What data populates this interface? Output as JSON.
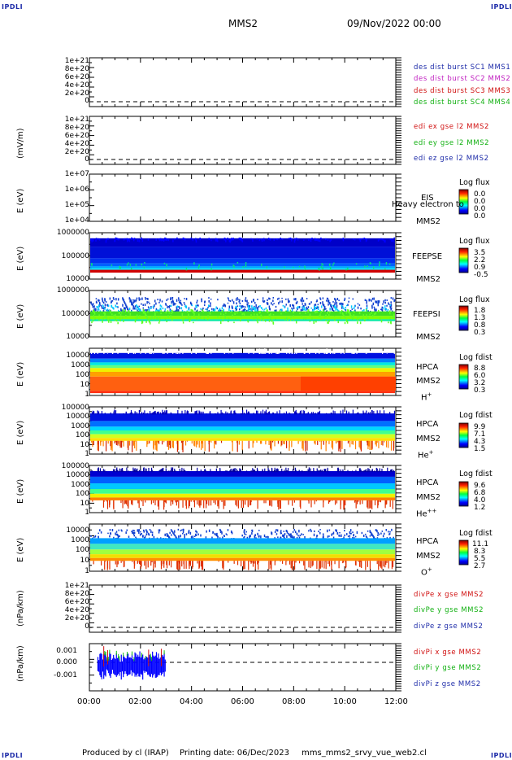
{
  "header": {
    "spacecraft": "MMS2",
    "datetime": "09/Nov/2022 00:00",
    "corner_label": "IPDLI"
  },
  "footer": {
    "produced_by": "Produced by cl (IRAP)",
    "printing_date": "Printing date: 06/Dec/2023",
    "script_name": "mms_mms2_srvy_vue_web2.cl"
  },
  "x_axis": {
    "tick_labels": [
      "00:00",
      "02:00",
      "04:00",
      "06:00",
      "08:00",
      "10:00",
      "12:00"
    ]
  },
  "panels": {
    "p1": {
      "ticks": [
        "1e+21",
        "8e+20",
        "6e+20",
        "4e+20",
        "2e+20",
        "0"
      ],
      "legend": [
        {
          "text": "des dist burst SC1 MMS1",
          "color": "#1c2aa8"
        },
        {
          "text": "des dist burst SC2 MMS2",
          "color": "#c020c0"
        },
        {
          "text": "des dist burst SC3 MMS3",
          "color": "#d01010"
        },
        {
          "text": "des dist burst SC4 MMS4",
          "color": "#10b010"
        }
      ]
    },
    "p2": {
      "ylabel": "(mV/m)",
      "ticks": [
        "1e+21",
        "8e+20",
        "6e+20",
        "4e+20",
        "2e+20",
        "0"
      ],
      "legend": [
        {
          "text": "edi ex gse l2 MMS2",
          "color": "#d01010"
        },
        {
          "text": "edi ey gse l2 MMS2",
          "color": "#10b010"
        },
        {
          "text": "edi ez gse l2 MMS2",
          "color": "#1c2aa8"
        }
      ]
    },
    "p3": {
      "ylabel": "E (eV)",
      "ticks": [
        "1e+07",
        "1e+06",
        "1e+05",
        "1e+04"
      ],
      "instrument": "EIS",
      "sc": "MMS2",
      "overlay": "Heavy electron to",
      "cb_title": "Log flux",
      "cb_values": [
        "0.0",
        "0.0",
        "0.0",
        "0.0"
      ]
    },
    "p4": {
      "ylabel": "E (eV)",
      "ticks": [
        "1000000",
        "100000",
        "10000"
      ],
      "instrument": "FEEPSE",
      "sc": "MMS2",
      "cb_title": "Log flux",
      "cb_values": [
        "3.5",
        "2.2",
        "0.9",
        "-0.5"
      ]
    },
    "p5": {
      "ylabel": "E (eV)",
      "ticks": [
        "1000000",
        "100000",
        "10000"
      ],
      "instrument": "FEEPSI",
      "sc": "MMS2",
      "cb_title": "Log flux",
      "cb_values": [
        "1.8",
        "1.3",
        "0.8",
        "0.3"
      ]
    },
    "p6": {
      "ylabel": "E (eV)",
      "ticks": [
        "10000",
        "1000",
        "100",
        "10",
        "1"
      ],
      "instrument": "HPCA",
      "sc": "MMS2",
      "species": "H",
      "species_sup": "+",
      "cb_title": "Log fdist",
      "cb_values": [
        "8.8",
        "6.0",
        "3.2",
        "0.3"
      ]
    },
    "p7": {
      "ylabel": "E (eV)",
      "ticks": [
        "100000",
        "10000",
        "1000",
        "100",
        "10",
        "1"
      ],
      "instrument": "HPCA",
      "sc": "MMS2",
      "species": "He",
      "species_sup": "+",
      "cb_title": "Log fdist",
      "cb_values": [
        "9.9",
        "7.1",
        "4.3",
        "1.5"
      ]
    },
    "p8": {
      "ylabel": "E (eV)",
      "ticks": [
        "100000",
        "10000",
        "1000",
        "100",
        "10",
        "1"
      ],
      "instrument": "HPCA",
      "sc": "MMS2",
      "species": "He",
      "species_sup": "++",
      "cb_title": "Log fdist",
      "cb_values": [
        "9.6",
        "6.8",
        "4.0",
        "1.2"
      ]
    },
    "p9": {
      "ylabel": "E (eV)",
      "ticks": [
        "10000",
        "1000",
        "100",
        "10",
        "1"
      ],
      "instrument": "HPCA",
      "sc": "MMS2",
      "species": "O",
      "species_sup": "+",
      "cb_title": "Log fdist",
      "cb_values": [
        "11.1",
        "8.3",
        "5.5",
        "2.7"
      ]
    },
    "p10": {
      "ylabel": "(nPa/km)",
      "ticks": [
        "1e+21",
        "8e+20",
        "6e+20",
        "4e+20",
        "2e+20",
        "0"
      ],
      "legend": [
        {
          "text": "divPe x gse MMS2",
          "color": "#d01010"
        },
        {
          "text": "divPe y gse MMS2",
          "color": "#10b010"
        },
        {
          "text": "divPe z gse MMS2",
          "color": "#1c2aa8"
        }
      ]
    },
    "p11": {
      "ylabel": "(nPa/km)",
      "ticks": [
        "0.001",
        "0.000",
        "-0.001"
      ],
      "legend": [
        {
          "text": "divPi x gse MMS2",
          "color": "#d01010"
        },
        {
          "text": "divPi y gse MMS2",
          "color": "#10b010"
        },
        {
          "text": "divPi z gse MMS2",
          "color": "#1c2aa8"
        }
      ]
    }
  },
  "chart_data": {
    "type": "heatmap",
    "x_range": [
      "00:00",
      "12:00"
    ],
    "series": [
      {
        "name": "FEEPSE",
        "scale": "log",
        "ylim": [
          10000,
          1000000
        ],
        "clim": [
          -0.5,
          3.5
        ],
        "data_x_range": [
          "00:00",
          "12:00"
        ]
      },
      {
        "name": "FEEPSI",
        "scale": "log",
        "ylim": [
          10000,
          1000000
        ],
        "clim": [
          0.3,
          1.8
        ],
        "data_x_range": [
          "00:00",
          "12:00"
        ]
      },
      {
        "name": "HPCA H+",
        "scale": "log",
        "ylim": [
          1,
          10000
        ],
        "clim": [
          0.3,
          8.8
        ],
        "data_x_range": [
          "00:00",
          "12:00"
        ]
      },
      {
        "name": "HPCA He+",
        "scale": "log",
        "ylim": [
          1,
          100000
        ],
        "clim": [
          1.5,
          9.9
        ],
        "data_x_range": [
          "00:00",
          "12:00"
        ]
      },
      {
        "name": "HPCA He++",
        "scale": "log",
        "ylim": [
          1,
          100000
        ],
        "clim": [
          1.2,
          9.6
        ],
        "data_x_range": [
          "00:00",
          "12:00"
        ]
      },
      {
        "name": "HPCA O+",
        "scale": "log",
        "ylim": [
          1,
          10000
        ],
        "clim": [
          2.7,
          11.1
        ],
        "data_x_range": [
          "00:00",
          "12:00"
        ]
      },
      {
        "name": "divPi",
        "scale": "linear",
        "ylim": [
          -0.0015,
          0.0015
        ],
        "data_x_range": [
          "00:20",
          "03:00"
        ]
      }
    ]
  }
}
